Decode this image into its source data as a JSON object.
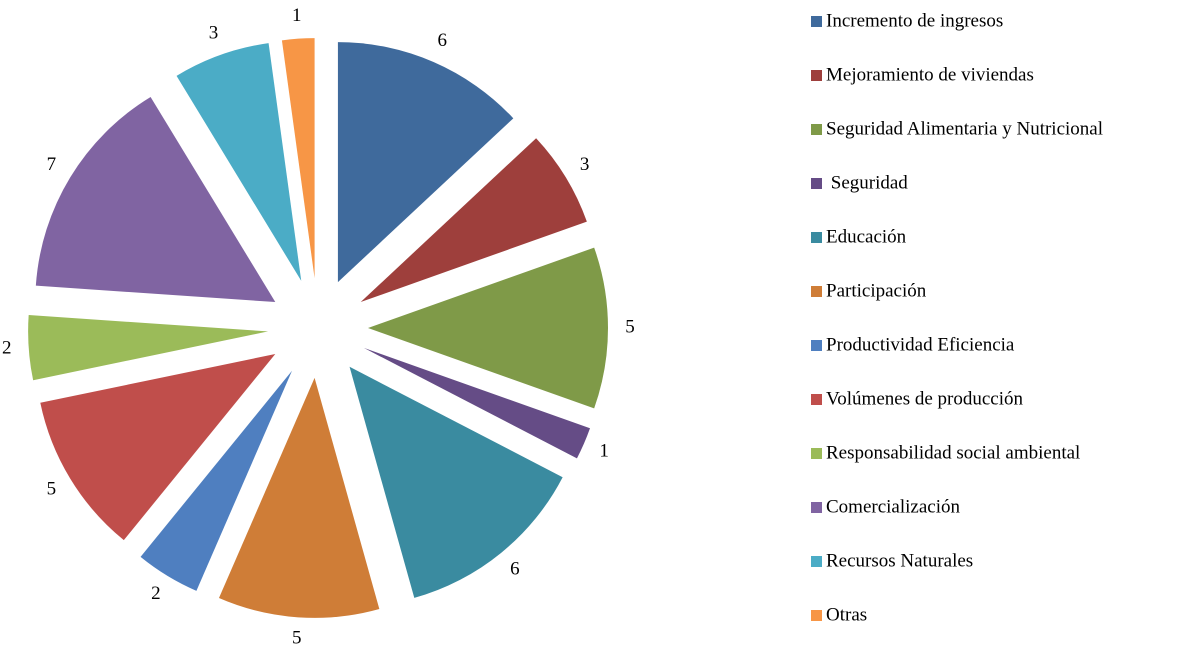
{
  "chart_data": {
    "type": "pie",
    "categories": [
      "Incremento de ingresos",
      "Mejoramiento de viviendas",
      "Seguridad Alimentaria y Nutricional",
      " Seguridad",
      "Educación",
      "Participación",
      "Productividad Eficiencia",
      "Volúmenes de producción",
      "Responsabilidad social ambiental",
      "Comercialización",
      "Recursos Naturales",
      "Otras"
    ],
    "values": [
      6,
      3,
      5,
      1,
      6,
      5,
      2,
      5,
      2,
      7,
      3,
      1
    ],
    "colors": [
      "#3f6a9c",
      "#9e3f3c",
      "#7f9a48",
      "#654c86",
      "#3a8ba0",
      "#cf7d37",
      "#4f7fc0",
      "#c04e4b",
      "#9bbb59",
      "#8064a2",
      "#4bacc6",
      "#f79646"
    ],
    "legend": "right"
  }
}
